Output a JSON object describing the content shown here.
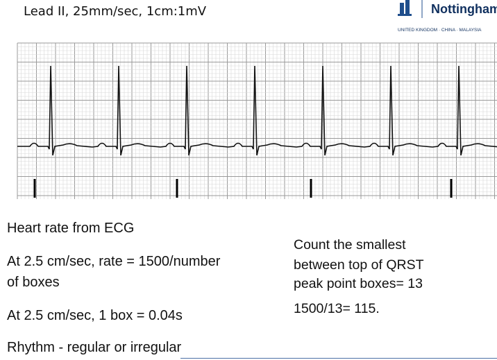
{
  "header": {
    "title": "Lead II, 25mm/sec, 1cm:1mV",
    "logo_name": "Nottingham",
    "logo_tagline": "UNITED KINGDOM · CHINA · MALAYSIA"
  },
  "left_text": [
    "Heart rate from ECG",
    "At 2.5 cm/sec, rate = 1500/number",
    "of boxes",
    "At 2.5 cm/sec, 1 box = 0.04s",
    "Rhythm  - regular  or irregular"
  ],
  "right_text": [
    "Count the smallest",
    "between top of QRST",
    "peak point boxes= 13",
    "1500/13= 115."
  ]
}
